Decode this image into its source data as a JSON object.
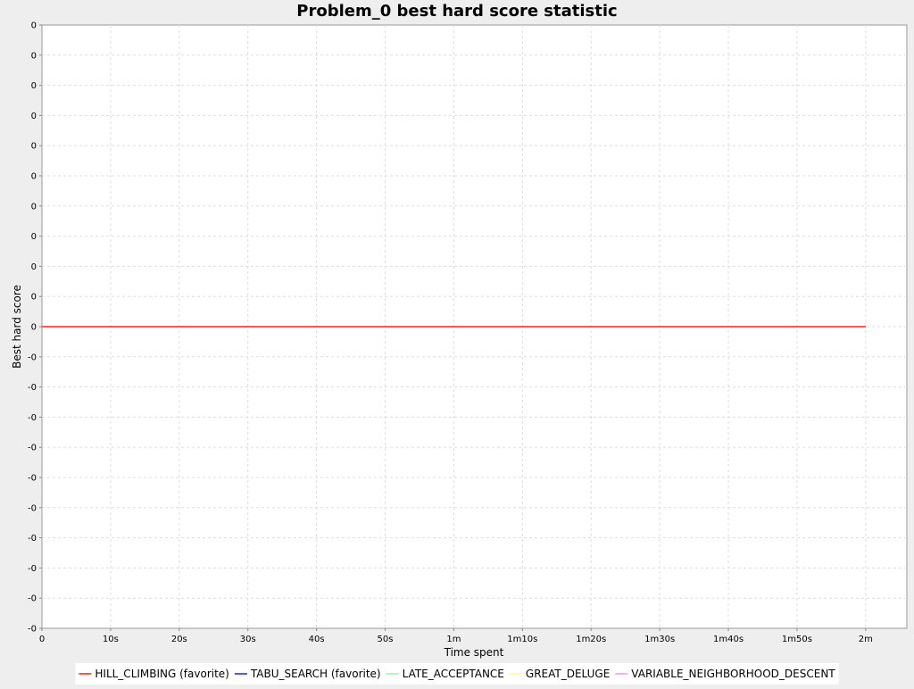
{
  "chart_data": {
    "type": "line",
    "title": "Problem_0 best hard score statistic",
    "xlabel": "Time spent",
    "ylabel": "Best hard score",
    "x_ticks": [
      "0",
      "10s",
      "20s",
      "30s",
      "40s",
      "50s",
      "1m",
      "1m10s",
      "1m20s",
      "1m30s",
      "1m40s",
      "1m50s",
      "2m"
    ],
    "x_tick_values": [
      0,
      10,
      20,
      30,
      40,
      50,
      60,
      70,
      80,
      90,
      100,
      110,
      120
    ],
    "y_ticks": [
      "0",
      "0",
      "0",
      "0",
      "0",
      "0",
      "0",
      "0",
      "0",
      "0",
      "0",
      "-0",
      "-0",
      "-0",
      "-0",
      "-0",
      "-0",
      "-0",
      "-0",
      "-0",
      "-0"
    ],
    "y_tick_values": [
      0.5,
      0.45,
      0.4,
      0.35,
      0.3,
      0.25,
      0.2,
      0.15,
      0.1,
      0.05,
      0.0,
      -0.05,
      -0.1,
      -0.15,
      -0.2,
      -0.25,
      -0.3,
      -0.35,
      -0.4,
      -0.45,
      -0.5
    ],
    "xlim": [
      0,
      126
    ],
    "ylim": [
      -0.5,
      0.5
    ],
    "grid": true,
    "legend_position": "bottom",
    "series": [
      {
        "name": "HILL_CLIMBING (favorite)",
        "color": "#ff5555",
        "x": [
          0,
          120
        ],
        "y": [
          0,
          0
        ],
        "stroke_width": 2
      },
      {
        "name": "TABU_SEARCH (favorite)",
        "color": "#5555ff",
        "x": [
          0,
          120
        ],
        "y": [
          0,
          0
        ],
        "stroke_width": 2
      },
      {
        "name": "LATE_ACCEPTANCE",
        "color": "#55ff55",
        "x": [
          0,
          120
        ],
        "y": [
          0,
          0
        ],
        "stroke_width": 1
      },
      {
        "name": "GREAT_DELUGE",
        "color": "#ffff55",
        "x": [
          0,
          120
        ],
        "y": [
          0,
          0
        ],
        "stroke_width": 1
      },
      {
        "name": "VARIABLE_NEIGHBORHOOD_DESCENT",
        "color": "#ff55ff",
        "x": [
          0,
          120
        ],
        "y": [
          0,
          0
        ],
        "stroke_width": 1
      }
    ]
  }
}
